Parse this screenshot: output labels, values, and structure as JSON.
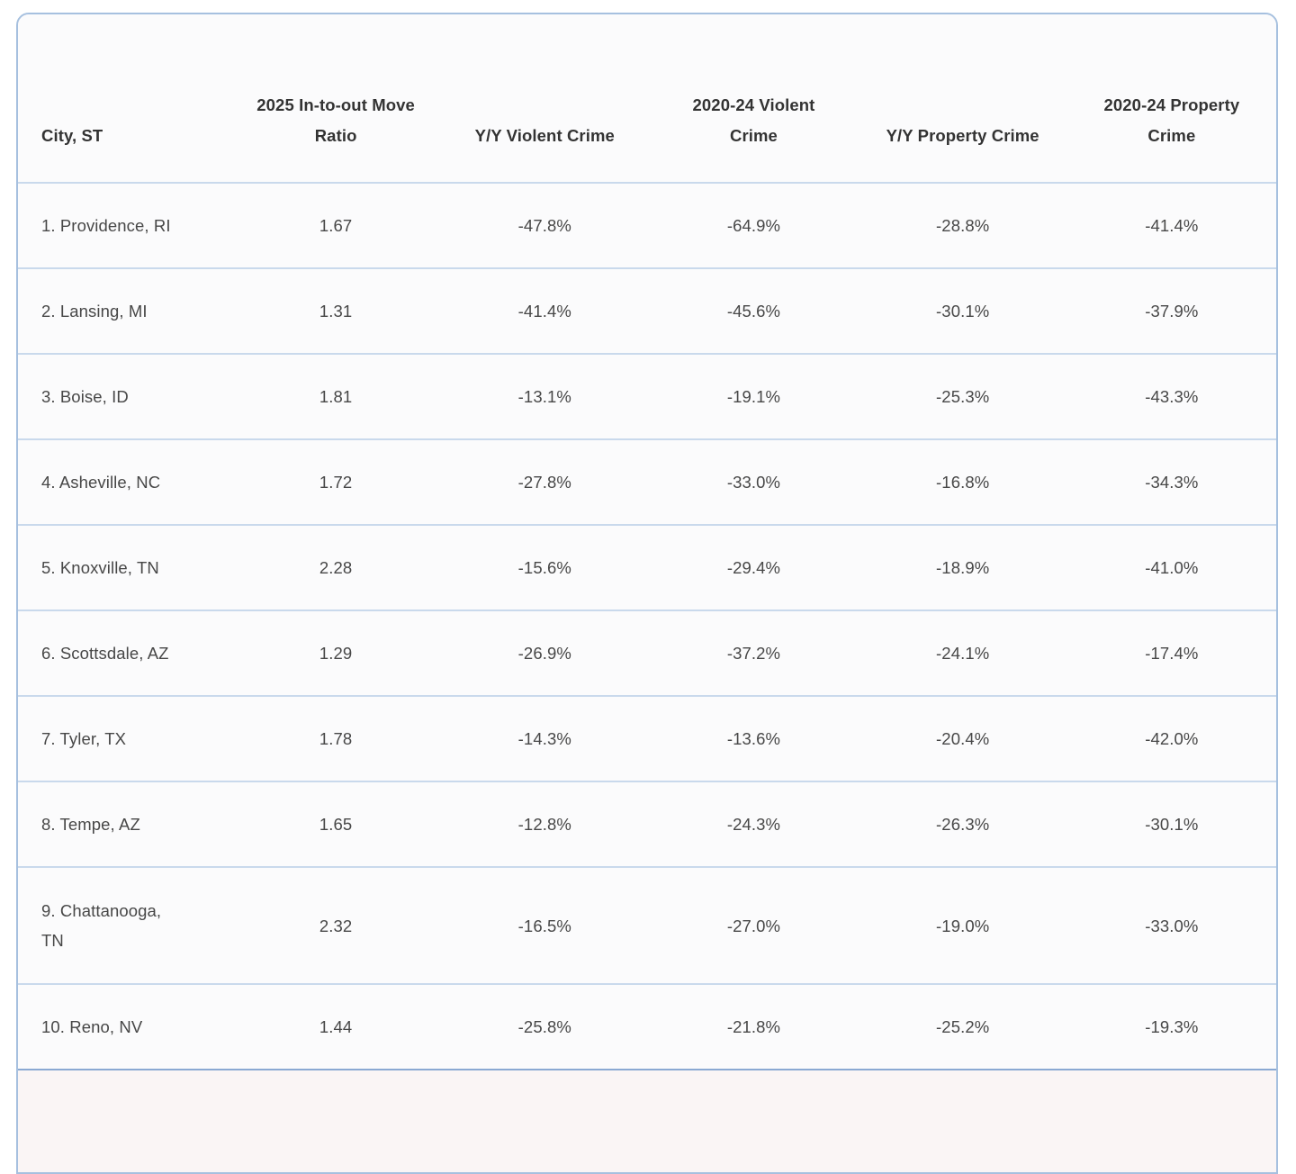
{
  "chart_data": {
    "type": "table",
    "title": "",
    "columns": [
      "City, ST",
      "2025 In-to-out Move Ratio",
      "Y/Y Violent Crime",
      "2020-24 Violent Crime",
      "Y/Y Property Crime",
      "2020-24 Property Crime"
    ],
    "rows": [
      [
        "1. Providence, RI",
        "1.67",
        "-47.8%",
        "-64.9%",
        "-28.8%",
        "-41.4%"
      ],
      [
        "2. Lansing, MI",
        "1.31",
        "-41.4%",
        "-45.6%",
        "-30.1%",
        "-37.9%"
      ],
      [
        "3. Boise, ID",
        "1.81",
        "-13.1%",
        "-19.1%",
        "-25.3%",
        "-43.3%"
      ],
      [
        "4. Asheville, NC",
        "1.72",
        "-27.8%",
        "-33.0%",
        "-16.8%",
        "-34.3%"
      ],
      [
        "5. Knoxville, TN",
        "2.28",
        "-15.6%",
        "-29.4%",
        "-18.9%",
        "-41.0%"
      ],
      [
        "6. Scottsdale, AZ",
        "1.29",
        "-26.9%",
        "-37.2%",
        "-24.1%",
        "-17.4%"
      ],
      [
        "7. Tyler, TX",
        "1.78",
        "-14.3%",
        "-13.6%",
        "-20.4%",
        "-42.0%"
      ],
      [
        "8. Tempe, AZ",
        "1.65",
        "-12.8%",
        "-24.3%",
        "-26.3%",
        "-30.1%"
      ],
      [
        "9. Chattanooga, TN",
        "2.32",
        "-16.5%",
        "-27.0%",
        "-19.0%",
        "-33.0%"
      ],
      [
        "10. Reno, NV",
        "1.44",
        "-25.8%",
        "-21.8%",
        "-25.2%",
        "-19.3%"
      ]
    ]
  },
  "colors": {
    "card_border": "#a6c0df",
    "row_divider": "#c9d9ec",
    "last_row_divider": "#8aa9d3",
    "cell_background": "#fbfbfc",
    "partial_next_row_background": "#faf5f5",
    "header_text": "#333333",
    "cell_text": "#474747",
    "page_background": "#ffffff"
  }
}
